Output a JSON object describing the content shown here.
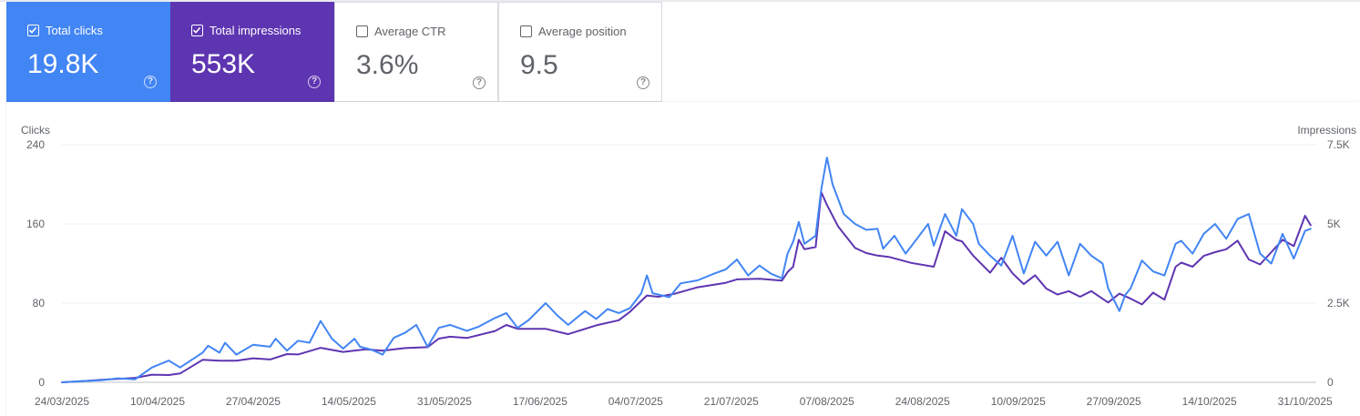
{
  "metrics": [
    {
      "label": "Total clicks",
      "value": "19.8K",
      "selected": true,
      "color": "#4285f4"
    },
    {
      "label": "Total impressions",
      "value": "553K",
      "selected": true,
      "color": "#5e35b1"
    },
    {
      "label": "Average CTR",
      "value": "3.6%",
      "selected": false,
      "color": "#ffffff"
    },
    {
      "label": "Average position",
      "value": "9.5",
      "selected": false,
      "color": "#ffffff"
    }
  ],
  "chart_data": {
    "type": "line",
    "ylabel_left": "Clicks",
    "ylabel_right": "Impressions",
    "y_left_ticks": [
      "240",
      "160",
      "80",
      "0"
    ],
    "y_right_ticks": [
      "7.5K",
      "5K",
      "2.5K",
      "0"
    ],
    "y_left_range": [
      0,
      240
    ],
    "y_right_range": [
      0,
      7500
    ],
    "x_ticks": [
      "24/03/2025",
      "10/04/2025",
      "27/04/2025",
      "14/05/2025",
      "31/05/2025",
      "17/06/2025",
      "04/07/2025",
      "21/07/2025",
      "07/08/2025",
      "24/08/2025",
      "10/09/2025",
      "27/09/2025",
      "14/10/2025",
      "31/10/2025"
    ],
    "x_range": [
      "24/03/2025",
      "02/11/2025"
    ],
    "grid": true,
    "series": [
      {
        "name": "Clicks",
        "axis": "left",
        "color": "#4285f4",
        "points": [
          [
            "24/03/2025",
            0
          ],
          [
            "27/03/2025",
            1
          ],
          [
            "31/03/2025",
            2
          ],
          [
            "03/04/2025",
            4
          ],
          [
            "06/04/2025",
            3
          ],
          [
            "09/04/2025",
            15
          ],
          [
            "12/04/2025",
            22
          ],
          [
            "14/04/2025",
            15
          ],
          [
            "18/04/2025",
            30
          ],
          [
            "19/04/2025",
            37
          ],
          [
            "21/04/2025",
            30
          ],
          [
            "22/04/2025",
            40
          ],
          [
            "24/04/2025",
            28
          ],
          [
            "27/04/2025",
            38
          ],
          [
            "30/04/2025",
            36
          ],
          [
            "01/05/2025",
            44
          ],
          [
            "03/05/2025",
            32
          ],
          [
            "05/05/2025",
            42
          ],
          [
            "07/05/2025",
            40
          ],
          [
            "09/05/2025",
            62
          ],
          [
            "11/05/2025",
            44
          ],
          [
            "13/05/2025",
            34
          ],
          [
            "15/05/2025",
            44
          ],
          [
            "16/05/2025",
            36
          ],
          [
            "18/05/2025",
            33
          ],
          [
            "20/05/2025",
            28
          ],
          [
            "22/05/2025",
            45
          ],
          [
            "24/05/2025",
            50
          ],
          [
            "26/05/2025",
            58
          ],
          [
            "28/05/2025",
            36
          ],
          [
            "30/05/2025",
            55
          ],
          [
            "01/06/2025",
            58
          ],
          [
            "04/06/2025",
            52
          ],
          [
            "06/06/2025",
            56
          ],
          [
            "09/06/2025",
            65
          ],
          [
            "11/06/2025",
            70
          ],
          [
            "13/06/2025",
            55
          ],
          [
            "15/06/2025",
            63
          ],
          [
            "18/06/2025",
            80
          ],
          [
            "20/06/2025",
            68
          ],
          [
            "22/06/2025",
            58
          ],
          [
            "25/06/2025",
            72
          ],
          [
            "27/06/2025",
            64
          ],
          [
            "29/06/2025",
            74
          ],
          [
            "01/07/2025",
            70
          ],
          [
            "03/07/2025",
            75
          ],
          [
            "05/07/2025",
            90
          ],
          [
            "06/07/2025",
            108
          ],
          [
            "07/07/2025",
            90
          ],
          [
            "10/07/2025",
            86
          ],
          [
            "12/07/2025",
            100
          ],
          [
            "15/07/2025",
            103
          ],
          [
            "18/07/2025",
            110
          ],
          [
            "20/07/2025",
            114
          ],
          [
            "22/07/2025",
            124
          ],
          [
            "24/07/2025",
            108
          ],
          [
            "26/07/2025",
            118
          ],
          [
            "28/07/2025",
            110
          ],
          [
            "30/07/2025",
            105
          ],
          [
            "31/07/2025",
            130
          ],
          [
            "01/08/2025",
            142
          ],
          [
            "02/08/2025",
            162
          ],
          [
            "03/08/2025",
            140
          ],
          [
            "05/08/2025",
            148
          ],
          [
            "06/08/2025",
            195
          ],
          [
            "07/08/2025",
            227
          ],
          [
            "08/08/2025",
            200
          ],
          [
            "10/08/2025",
            170
          ],
          [
            "12/08/2025",
            160
          ],
          [
            "14/08/2025",
            154
          ],
          [
            "16/08/2025",
            155
          ],
          [
            "17/08/2025",
            135
          ],
          [
            "19/08/2025",
            148
          ],
          [
            "21/08/2025",
            130
          ],
          [
            "23/08/2025",
            145
          ],
          [
            "25/08/2025",
            160
          ],
          [
            "26/08/2025",
            138
          ],
          [
            "28/08/2025",
            170
          ],
          [
            "30/08/2025",
            148
          ],
          [
            "31/08/2025",
            175
          ],
          [
            "02/09/2025",
            160
          ],
          [
            "03/09/2025",
            140
          ],
          [
            "05/09/2025",
            128
          ],
          [
            "07/09/2025",
            118
          ],
          [
            "09/09/2025",
            148
          ],
          [
            "11/09/2025",
            110
          ],
          [
            "13/09/2025",
            142
          ],
          [
            "15/09/2025",
            128
          ],
          [
            "17/09/2025",
            142
          ],
          [
            "19/09/2025",
            108
          ],
          [
            "21/09/2025",
            140
          ],
          [
            "23/09/2025",
            128
          ],
          [
            "25/09/2025",
            120
          ],
          [
            "26/09/2025",
            95
          ],
          [
            "28/09/2025",
            72
          ],
          [
            "29/09/2025",
            88
          ],
          [
            "30/09/2025",
            95
          ],
          [
            "02/10/2025",
            123
          ],
          [
            "04/10/2025",
            112
          ],
          [
            "06/10/2025",
            108
          ],
          [
            "08/10/2025",
            140
          ],
          [
            "09/10/2025",
            143
          ],
          [
            "11/10/2025",
            130
          ],
          [
            "13/10/2025",
            150
          ],
          [
            "15/10/2025",
            160
          ],
          [
            "17/10/2025",
            145
          ],
          [
            "19/10/2025",
            165
          ],
          [
            "21/10/2025",
            170
          ],
          [
            "23/10/2025",
            130
          ],
          [
            "25/10/2025",
            120
          ],
          [
            "27/10/2025",
            150
          ],
          [
            "29/10/2025",
            125
          ],
          [
            "31/10/2025",
            153
          ],
          [
            "01/11/2025",
            155
          ]
        ]
      },
      {
        "name": "Impressions",
        "axis": "right",
        "color": "#5e35b1",
        "points": [
          [
            "24/03/2025",
            0
          ],
          [
            "27/03/2025",
            30
          ],
          [
            "31/03/2025",
            80
          ],
          [
            "03/04/2025",
            110
          ],
          [
            "06/04/2025",
            140
          ],
          [
            "09/04/2025",
            240
          ],
          [
            "12/04/2025",
            230
          ],
          [
            "14/04/2025",
            280
          ],
          [
            "18/04/2025",
            710
          ],
          [
            "21/04/2025",
            680
          ],
          [
            "24/04/2025",
            680
          ],
          [
            "27/04/2025",
            760
          ],
          [
            "30/04/2025",
            720
          ],
          [
            "03/05/2025",
            890
          ],
          [
            "05/05/2025",
            880
          ],
          [
            "09/05/2025",
            1090
          ],
          [
            "13/05/2025",
            960
          ],
          [
            "17/05/2025",
            1040
          ],
          [
            "20/05/2025",
            1000
          ],
          [
            "24/05/2025",
            1080
          ],
          [
            "28/05/2025",
            1110
          ],
          [
            "30/05/2025",
            1380
          ],
          [
            "01/06/2025",
            1440
          ],
          [
            "04/06/2025",
            1400
          ],
          [
            "09/06/2025",
            1620
          ],
          [
            "11/06/2025",
            1810
          ],
          [
            "13/06/2025",
            1690
          ],
          [
            "18/06/2025",
            1690
          ],
          [
            "22/06/2025",
            1520
          ],
          [
            "27/06/2025",
            1800
          ],
          [
            "01/07/2025",
            1960
          ],
          [
            "03/07/2025",
            2230
          ],
          [
            "06/07/2025",
            2740
          ],
          [
            "08/07/2025",
            2700
          ],
          [
            "11/07/2025",
            2800
          ],
          [
            "15/07/2025",
            3000
          ],
          [
            "20/07/2025",
            3140
          ],
          [
            "22/07/2025",
            3250
          ],
          [
            "26/07/2025",
            3270
          ],
          [
            "30/07/2025",
            3210
          ],
          [
            "31/07/2025",
            3480
          ],
          [
            "01/08/2025",
            3650
          ],
          [
            "02/08/2025",
            4500
          ],
          [
            "03/08/2025",
            4200
          ],
          [
            "05/08/2025",
            4270
          ],
          [
            "06/08/2025",
            6000
          ],
          [
            "07/08/2025",
            5600
          ],
          [
            "09/08/2025",
            4920
          ],
          [
            "12/08/2025",
            4240
          ],
          [
            "14/08/2025",
            4080
          ],
          [
            "16/08/2025",
            4000
          ],
          [
            "18/08/2025",
            3960
          ],
          [
            "22/08/2025",
            3770
          ],
          [
            "26/08/2025",
            3650
          ],
          [
            "28/08/2025",
            4770
          ],
          [
            "30/08/2025",
            4500
          ],
          [
            "31/08/2025",
            4450
          ],
          [
            "02/09/2025",
            4000
          ],
          [
            "05/09/2025",
            3460
          ],
          [
            "07/09/2025",
            3930
          ],
          [
            "09/09/2025",
            3440
          ],
          [
            "11/09/2025",
            3100
          ],
          [
            "13/09/2025",
            3380
          ],
          [
            "15/09/2025",
            2960
          ],
          [
            "17/09/2025",
            2770
          ],
          [
            "19/09/2025",
            2880
          ],
          [
            "21/09/2025",
            2700
          ],
          [
            "23/09/2025",
            2880
          ],
          [
            "26/09/2025",
            2520
          ],
          [
            "28/09/2025",
            2800
          ],
          [
            "30/09/2025",
            2640
          ],
          [
            "02/10/2025",
            2460
          ],
          [
            "04/10/2025",
            2830
          ],
          [
            "06/10/2025",
            2610
          ],
          [
            "08/10/2025",
            3650
          ],
          [
            "09/10/2025",
            3780
          ],
          [
            "11/10/2025",
            3650
          ],
          [
            "13/10/2025",
            3990
          ],
          [
            "15/10/2025",
            4110
          ],
          [
            "17/10/2025",
            4200
          ],
          [
            "19/10/2025",
            4470
          ],
          [
            "21/10/2025",
            3880
          ],
          [
            "23/10/2025",
            3720
          ],
          [
            "25/10/2025",
            4110
          ],
          [
            "27/10/2025",
            4500
          ],
          [
            "29/10/2025",
            4300
          ],
          [
            "31/10/2025",
            5260
          ],
          [
            "01/11/2025",
            4960
          ]
        ]
      }
    ]
  }
}
